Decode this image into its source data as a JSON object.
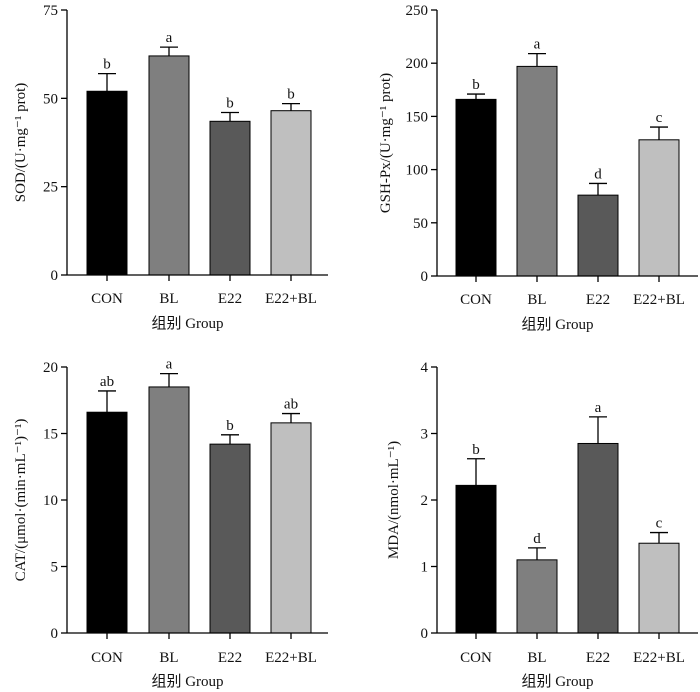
{
  "chart_data": [
    {
      "type": "bar",
      "ylabel": "SOD/(U·mg⁻¹ prot)",
      "xlabel": "组别 Group",
      "categories": [
        "CON",
        "BL",
        "E22",
        "E22+BL"
      ],
      "values": [
        52,
        62,
        43.5,
        46.5
      ],
      "errors": [
        5,
        2.5,
        2.5,
        2
      ],
      "letters": [
        "b",
        "a",
        "b",
        "b"
      ],
      "ylim": [
        0,
        75
      ],
      "yticks": [
        "0",
        "25",
        "50",
        "75"
      ],
      "colors": [
        "#000000",
        "#7f7f7f",
        "#595959",
        "#bfbfbf"
      ]
    },
    {
      "type": "bar",
      "ylabel": "GSH-Px/(U·mg⁻¹ prot)",
      "xlabel": "组别 Group",
      "categories": [
        "CON",
        "BL",
        "E22",
        "E22+BL"
      ],
      "values": [
        166,
        197,
        76,
        128
      ],
      "errors": [
        5,
        12,
        11,
        12
      ],
      "letters": [
        "b",
        "a",
        "d",
        "c"
      ],
      "ylim": [
        0,
        250
      ],
      "yticks": [
        "0",
        "50",
        "100",
        "150",
        "200",
        "250"
      ],
      "colors": [
        "#000000",
        "#7f7f7f",
        "#595959",
        "#bfbfbf"
      ]
    },
    {
      "type": "bar",
      "ylabel": "CAT/(μmol·(min·mL⁻¹)⁻¹)",
      "xlabel": "组别 Group",
      "categories": [
        "CON",
        "BL",
        "E22",
        "E22+BL"
      ],
      "values": [
        16.6,
        18.5,
        14.2,
        15.8
      ],
      "errors": [
        1.6,
        1.0,
        0.7,
        0.7
      ],
      "letters": [
        "ab",
        "a",
        "b",
        "ab"
      ],
      "ylim": [
        0,
        20
      ],
      "yticks": [
        "0",
        "5",
        "10",
        "15",
        "20"
      ],
      "colors": [
        "#000000",
        "#7f7f7f",
        "#595959",
        "#bfbfbf"
      ]
    },
    {
      "type": "bar",
      "ylabel": "MDA/(nmol·mL⁻¹)",
      "xlabel": "组别 Group",
      "categories": [
        "CON",
        "BL",
        "E22",
        "E22+BL"
      ],
      "values": [
        2.22,
        1.1,
        2.85,
        1.35
      ],
      "errors": [
        0.4,
        0.18,
        0.4,
        0.16
      ],
      "letters": [
        "b",
        "d",
        "a",
        "c"
      ],
      "ylim": [
        0,
        4
      ],
      "yticks": [
        "0",
        "1",
        "2",
        "3",
        "4"
      ],
      "colors": [
        "#000000",
        "#7f7f7f",
        "#595959",
        "#bfbfbf"
      ]
    }
  ]
}
